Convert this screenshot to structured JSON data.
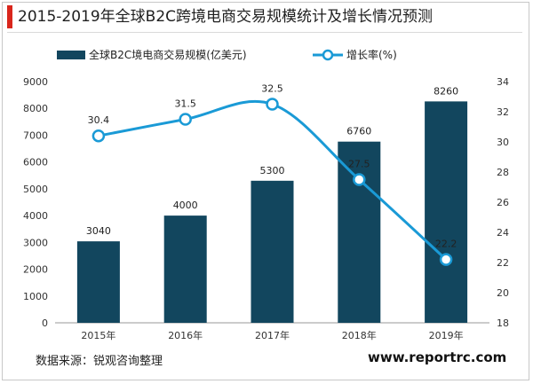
{
  "title": "2015-2019年全球B2C跨境电商交易规模统计及增长情况预测",
  "source": "数据来源：锐观咨询整理",
  "site": "www.reportrc.com",
  "colors": {
    "bar": "#12465e",
    "line": "#1a9ad6",
    "accent": "#d9261c"
  },
  "chart_data": {
    "type": "bar",
    "categories": [
      "2015年",
      "2016年",
      "2017年",
      "2018年",
      "2019年"
    ],
    "series": [
      {
        "name": "全球B2C境电商交易规模(亿美元)",
        "type": "bar",
        "axis": "left",
        "values": [
          3040,
          4000,
          5300,
          6760,
          8260
        ]
      },
      {
        "name": "增长率(%)",
        "type": "line",
        "axis": "right",
        "values": [
          30.4,
          31.5,
          32.5,
          27.5,
          22.2
        ]
      }
    ],
    "y_left": {
      "min": 0,
      "max": 9000,
      "step": 1000,
      "ticks": [
        "0",
        "1000",
        "2000",
        "3000",
        "4000",
        "5000",
        "6000",
        "7000",
        "8000",
        "9000"
      ]
    },
    "y_right": {
      "min": 18,
      "max": 34,
      "step": 2,
      "ticks": [
        "18",
        "20",
        "22",
        "24",
        "26",
        "28",
        "30",
        "32",
        "34"
      ]
    },
    "bar_labels": [
      "3040",
      "4000",
      "5300",
      "6760",
      "8260"
    ],
    "line_labels": [
      "30.4",
      "31.5",
      "32.5",
      "27.5",
      "22.2"
    ],
    "legend_position": "top",
    "grid": false
  }
}
